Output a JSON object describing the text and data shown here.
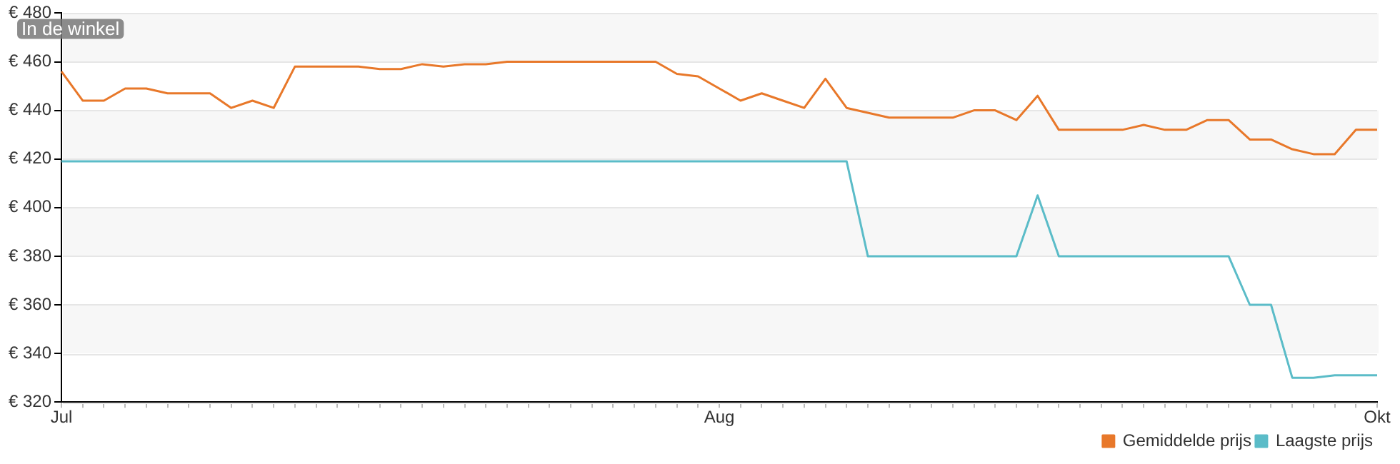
{
  "chart_data": {
    "type": "line",
    "categories": [
      "Jul",
      null,
      null,
      null,
      null,
      null,
      null,
      null,
      null,
      null,
      null,
      null,
      null,
      null,
      null,
      null,
      null,
      null,
      null,
      null,
      null,
      null,
      null,
      null,
      null,
      null,
      null,
      null,
      null,
      null,
      null,
      "Aug",
      null,
      null,
      null,
      null,
      null,
      null,
      null,
      null,
      null,
      null,
      null,
      null,
      null,
      null,
      null,
      null,
      null,
      null,
      null,
      null,
      null,
      null,
      null,
      null,
      null,
      null,
      null,
      null,
      null,
      null,
      "Okt"
    ],
    "series": [
      {
        "name": "Gemiddelde prijs",
        "color": "#e8782a",
        "values": [
          456,
          444,
          444,
          449,
          449,
          447,
          447,
          447,
          441,
          444,
          441,
          458,
          458,
          458,
          458,
          457,
          457,
          459,
          458,
          459,
          459,
          460,
          460,
          460,
          460,
          460,
          460,
          460,
          460,
          455,
          454,
          449,
          444,
          447,
          444,
          441,
          453,
          441,
          439,
          437,
          437,
          437,
          437,
          440,
          440,
          436,
          446,
          432,
          432,
          432,
          432,
          434,
          432,
          432,
          436,
          436,
          428,
          428,
          424,
          422,
          422,
          432,
          432
        ]
      },
      {
        "name": "Laagste prijs",
        "color": "#5bbcc8",
        "values": [
          419,
          419,
          419,
          419,
          419,
          419,
          419,
          419,
          419,
          419,
          419,
          419,
          419,
          419,
          419,
          419,
          419,
          419,
          419,
          419,
          419,
          419,
          419,
          419,
          419,
          419,
          419,
          419,
          419,
          419,
          419,
          419,
          419,
          419,
          419,
          419,
          419,
          419,
          380,
          380,
          380,
          380,
          380,
          380,
          380,
          380,
          405,
          380,
          380,
          380,
          380,
          380,
          380,
          380,
          380,
          380,
          360,
          360,
          330,
          330,
          331,
          331,
          331
        ]
      }
    ],
    "ylim": [
      320,
      480
    ],
    "yticks": [
      {
        "value": 320,
        "label": "€ 320"
      },
      {
        "value": 340,
        "label": "€ 340"
      },
      {
        "value": 360,
        "label": "€ 360"
      },
      {
        "value": 380,
        "label": "€ 380"
      },
      {
        "value": 400,
        "label": "€ 400"
      },
      {
        "value": 420,
        "label": "€ 420"
      },
      {
        "value": 440,
        "label": "€ 440"
      },
      {
        "value": 460,
        "label": "€ 460"
      },
      {
        "value": 480,
        "label": "€ 480"
      }
    ],
    "grid": "y",
    "legend": "bottom right",
    "marker": "none",
    "line_style": "solid",
    "annotations": [
      "In de winkel"
    ]
  }
}
